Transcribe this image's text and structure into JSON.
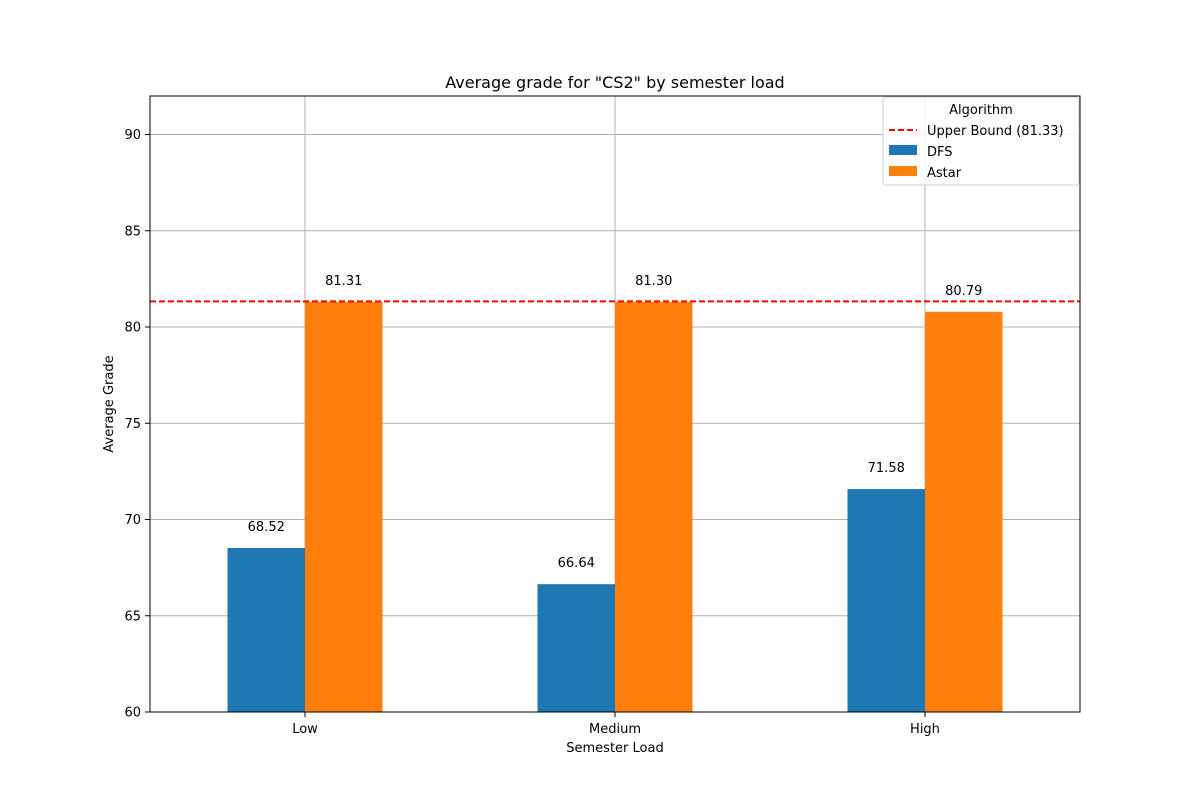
{
  "chart_data": {
    "type": "bar",
    "title": "Average grade for \"CS2\" by semester load",
    "xlabel": "Semester Load",
    "ylabel": "Average Grade",
    "categories": [
      "Low",
      "Medium",
      "High"
    ],
    "series": [
      {
        "name": "DFS",
        "values": [
          68.52,
          66.64,
          71.58
        ],
        "labels": [
          "68.52",
          "66.64",
          "71.58"
        ],
        "color": "#1f77b4"
      },
      {
        "name": "Astar",
        "values": [
          81.31,
          81.3,
          80.79
        ],
        "labels": [
          "81.31",
          "81.30",
          "80.79"
        ],
        "color": "#ff7f0e"
      }
    ],
    "reference_line": {
      "label": "Upper Bound (81.33)",
      "value": 81.33,
      "color": "#ff0000",
      "style": "dashed"
    },
    "ylim": [
      60,
      92
    ],
    "yticks": [
      60,
      65,
      70,
      75,
      80,
      85,
      90
    ],
    "ytick_labels": [
      "60",
      "65",
      "70",
      "75",
      "80",
      "85",
      "90"
    ],
    "grid": true,
    "legend": {
      "title": "Algorithm",
      "placement": "top-right"
    }
  }
}
